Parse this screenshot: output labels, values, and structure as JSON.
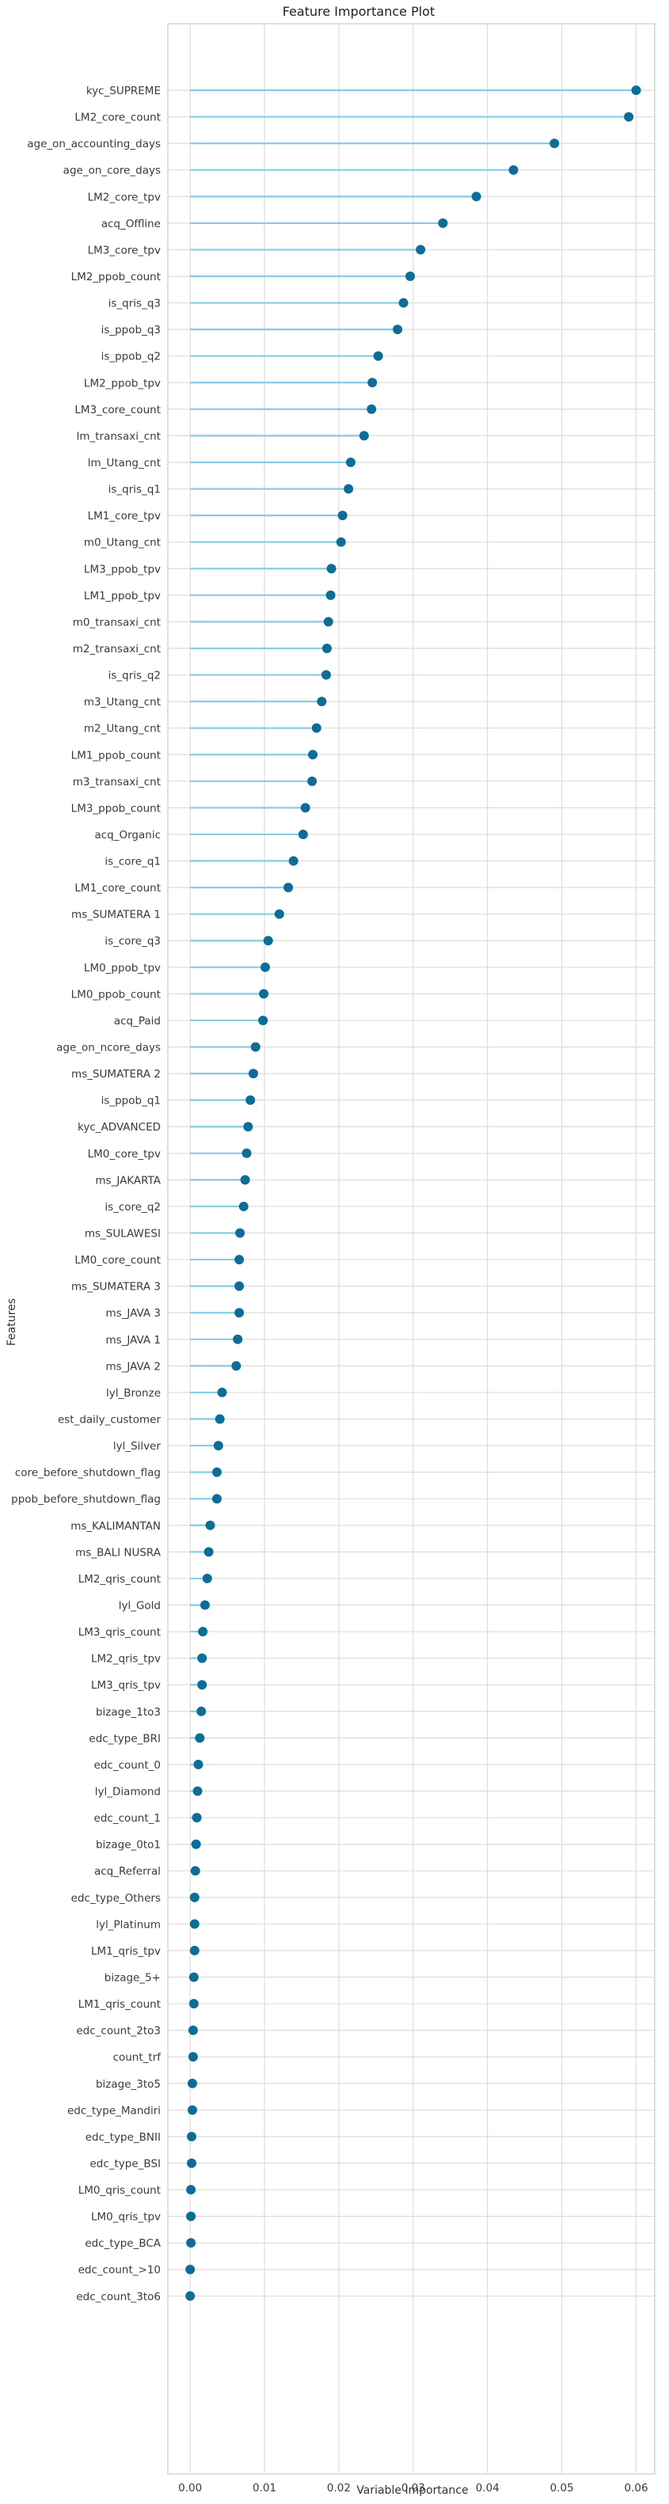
{
  "colors": {
    "grid": "#dcdcdc",
    "stem": "#87cbe4",
    "marker": "#0d6d96",
    "frame": "#bdbdbd"
  },
  "chart_data": {
    "type": "lollipop",
    "title": "Feature Importance Plot",
    "xlabel": "Variable Importance",
    "ylabel": "Features",
    "xlim": [
      -0.003,
      0.0625
    ],
    "xticks": [
      0.0,
      0.01,
      0.02,
      0.03,
      0.04,
      0.05,
      0.06
    ],
    "xtick_labels": [
      "0.00",
      "0.01",
      "0.02",
      "0.03",
      "0.04",
      "0.05",
      "0.06"
    ],
    "grid": true,
    "features": [
      {
        "name": "kyc_SUPREME",
        "value": 0.06
      },
      {
        "name": "LM2_core_count",
        "value": 0.059
      },
      {
        "name": "age_on_accounting_days",
        "value": 0.049
      },
      {
        "name": "age_on_core_days",
        "value": 0.0435
      },
      {
        "name": "LM2_core_tpv",
        "value": 0.0385
      },
      {
        "name": "acq_Offline",
        "value": 0.034
      },
      {
        "name": "LM3_core_tpv",
        "value": 0.031
      },
      {
        "name": "LM2_ppob_count",
        "value": 0.0296
      },
      {
        "name": "is_qris_q3",
        "value": 0.0287
      },
      {
        "name": "is_ppob_q3",
        "value": 0.0279
      },
      {
        "name": "is_ppob_q2",
        "value": 0.0253
      },
      {
        "name": "LM2_ppob_tpv",
        "value": 0.0245
      },
      {
        "name": "LM3_core_count",
        "value": 0.0244
      },
      {
        "name": "lm_transaxi_cnt",
        "value": 0.0234
      },
      {
        "name": "lm_Utang_cnt",
        "value": 0.0216
      },
      {
        "name": "is_qris_q1",
        "value": 0.0213
      },
      {
        "name": "LM1_core_tpv",
        "value": 0.0205
      },
      {
        "name": "m0_Utang_cnt",
        "value": 0.0203
      },
      {
        "name": "LM3_ppob_tpv",
        "value": 0.019
      },
      {
        "name": "LM1_ppob_tpv",
        "value": 0.0189
      },
      {
        "name": "m0_transaxi_cnt",
        "value": 0.0186
      },
      {
        "name": "m2_transaxi_cnt",
        "value": 0.0184
      },
      {
        "name": "is_qris_q2",
        "value": 0.0183
      },
      {
        "name": "m3_Utang_cnt",
        "value": 0.0177
      },
      {
        "name": "m2_Utang_cnt",
        "value": 0.017
      },
      {
        "name": "LM1_ppob_count",
        "value": 0.0165
      },
      {
        "name": "m3_transaxi_cnt",
        "value": 0.0164
      },
      {
        "name": "LM3_ppob_count",
        "value": 0.0155
      },
      {
        "name": "acq_Organic",
        "value": 0.0152
      },
      {
        "name": "is_core_q1",
        "value": 0.0139
      },
      {
        "name": "LM1_core_count",
        "value": 0.0132
      },
      {
        "name": "ms_SUMATERA 1",
        "value": 0.012
      },
      {
        "name": "is_core_q3",
        "value": 0.0105
      },
      {
        "name": "LM0_ppob_tpv",
        "value": 0.0101
      },
      {
        "name": "LM0_ppob_count",
        "value": 0.0099
      },
      {
        "name": "acq_Paid",
        "value": 0.0098
      },
      {
        "name": "age_on_ncore_days",
        "value": 0.0088
      },
      {
        "name": "ms_SUMATERA 2",
        "value": 0.0085
      },
      {
        "name": "is_ppob_q1",
        "value": 0.0081
      },
      {
        "name": "kyc_ADVANCED",
        "value": 0.0078
      },
      {
        "name": "LM0_core_tpv",
        "value": 0.0076
      },
      {
        "name": "ms_JAKARTA",
        "value": 0.0074
      },
      {
        "name": "is_core_q2",
        "value": 0.0072
      },
      {
        "name": "ms_SULAWESI",
        "value": 0.0067
      },
      {
        "name": "LM0_core_count",
        "value": 0.0066
      },
      {
        "name": "ms_SUMATERA 3",
        "value": 0.0066
      },
      {
        "name": "ms_JAVA 3",
        "value": 0.0066
      },
      {
        "name": "ms_JAVA 1",
        "value": 0.0064
      },
      {
        "name": "ms_JAVA 2",
        "value": 0.0062
      },
      {
        "name": "lyl_Bronze",
        "value": 0.0043
      },
      {
        "name": "est_daily_customer",
        "value": 0.004
      },
      {
        "name": "lyl_Silver",
        "value": 0.0038
      },
      {
        "name": "core_before_shutdown_flag",
        "value": 0.0036
      },
      {
        "name": "ppob_before_shutdown_flag",
        "value": 0.0036
      },
      {
        "name": "ms_KALIMANTAN",
        "value": 0.0027
      },
      {
        "name": "ms_BALI NUSRA",
        "value": 0.0025
      },
      {
        "name": "LM2_qris_count",
        "value": 0.0023
      },
      {
        "name": "lyl_Gold",
        "value": 0.002
      },
      {
        "name": "LM3_qris_count",
        "value": 0.0017
      },
      {
        "name": "LM2_qris_tpv",
        "value": 0.0016
      },
      {
        "name": "LM3_qris_tpv",
        "value": 0.0016
      },
      {
        "name": "bizage_1to3",
        "value": 0.0015
      },
      {
        "name": "edc_type_BRI",
        "value": 0.0013
      },
      {
        "name": "edc_count_0",
        "value": 0.0011
      },
      {
        "name": "lyl_Diamond",
        "value": 0.001
      },
      {
        "name": "edc_count_1",
        "value": 0.0009
      },
      {
        "name": "bizage_0to1",
        "value": 0.0008
      },
      {
        "name": "acq_Referral",
        "value": 0.0007
      },
      {
        "name": "edc_type_Others",
        "value": 0.0006
      },
      {
        "name": "lyl_Platinum",
        "value": 0.0006
      },
      {
        "name": "LM1_qris_tpv",
        "value": 0.0006
      },
      {
        "name": "bizage_5+",
        "value": 0.0005
      },
      {
        "name": "LM1_qris_count",
        "value": 0.0005
      },
      {
        "name": "edc_count_2to3",
        "value": 0.0004
      },
      {
        "name": "count_trf",
        "value": 0.0004
      },
      {
        "name": "bizage_3to5",
        "value": 0.0003
      },
      {
        "name": "edc_type_Mandiri",
        "value": 0.0003
      },
      {
        "name": "edc_type_BNII",
        "value": 0.0002
      },
      {
        "name": "edc_type_BSI",
        "value": 0.0002
      },
      {
        "name": "LM0_qris_count",
        "value": 0.0001
      },
      {
        "name": "LM0_qris_tpv",
        "value": 0.0001
      },
      {
        "name": "edc_type_BCA",
        "value": 0.0001
      },
      {
        "name": "edc_count_>10",
        "value": 0.0
      },
      {
        "name": "edc_count_3to6",
        "value": 0.0
      }
    ]
  }
}
